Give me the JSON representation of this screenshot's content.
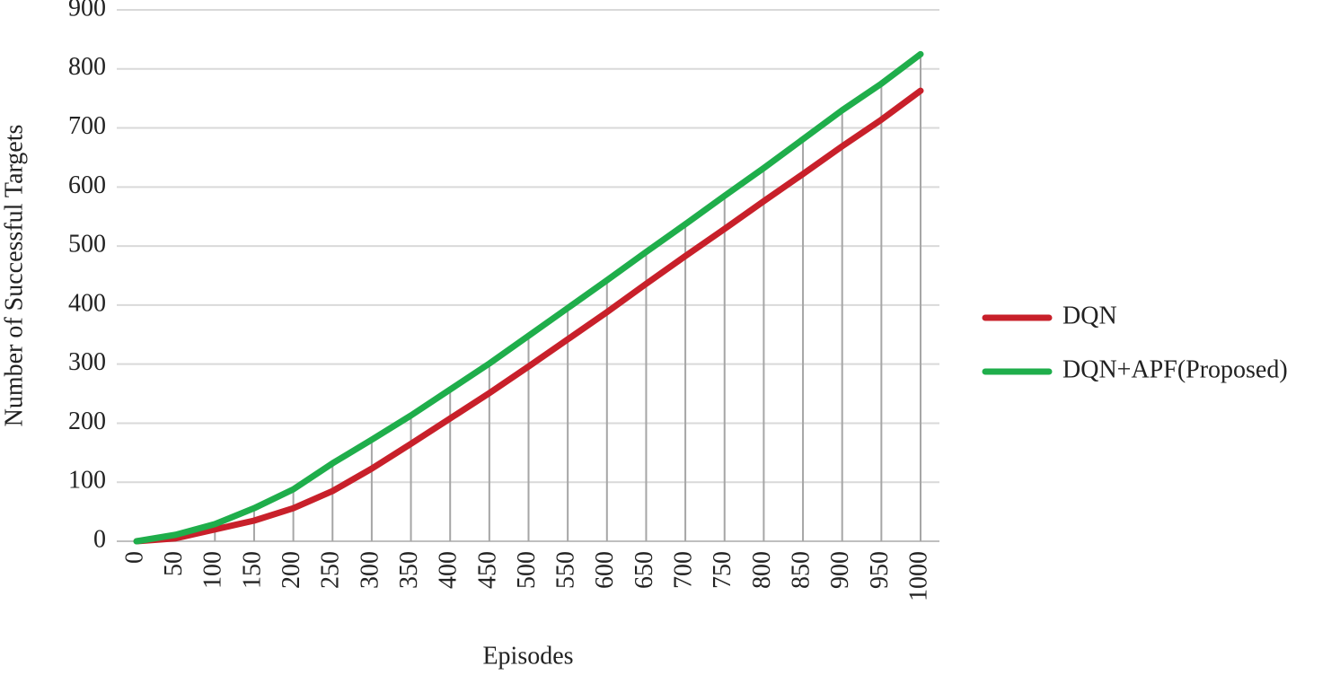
{
  "chart_data": {
    "type": "line",
    "x_label": "Episodes",
    "y_label": "Number of Successful Targets",
    "categories": [
      "0",
      "50",
      "100",
      "150",
      "200",
      "250",
      "300",
      "350",
      "400",
      "450",
      "500",
      "550",
      "600",
      "650",
      "700",
      "750",
      "800",
      "850",
      "900",
      "950",
      "1000"
    ],
    "series": [
      {
        "name": "DQN",
        "color": "#c8202a",
        "values": [
          0,
          5,
          20,
          35,
          56,
          85,
          123,
          165,
          208,
          251,
          296,
          342,
          388,
          436,
          483,
          529,
          576,
          622,
          669,
          714,
          763
        ]
      },
      {
        "name": "DQN+APF(Proposed)",
        "color": "#1fae4b",
        "values": [
          0,
          11,
          29,
          56,
          88,
          132,
          172,
          213,
          257,
          301,
          348,
          395,
          442,
          490,
          537,
          585,
          632,
          681,
          730,
          775,
          825
        ]
      }
    ],
    "ylim": [
      0,
      900
    ],
    "yticks": [
      0,
      100,
      200,
      300,
      400,
      500,
      600,
      700,
      800,
      900
    ],
    "grid": true,
    "drop_lines": true,
    "legend": "right"
  }
}
